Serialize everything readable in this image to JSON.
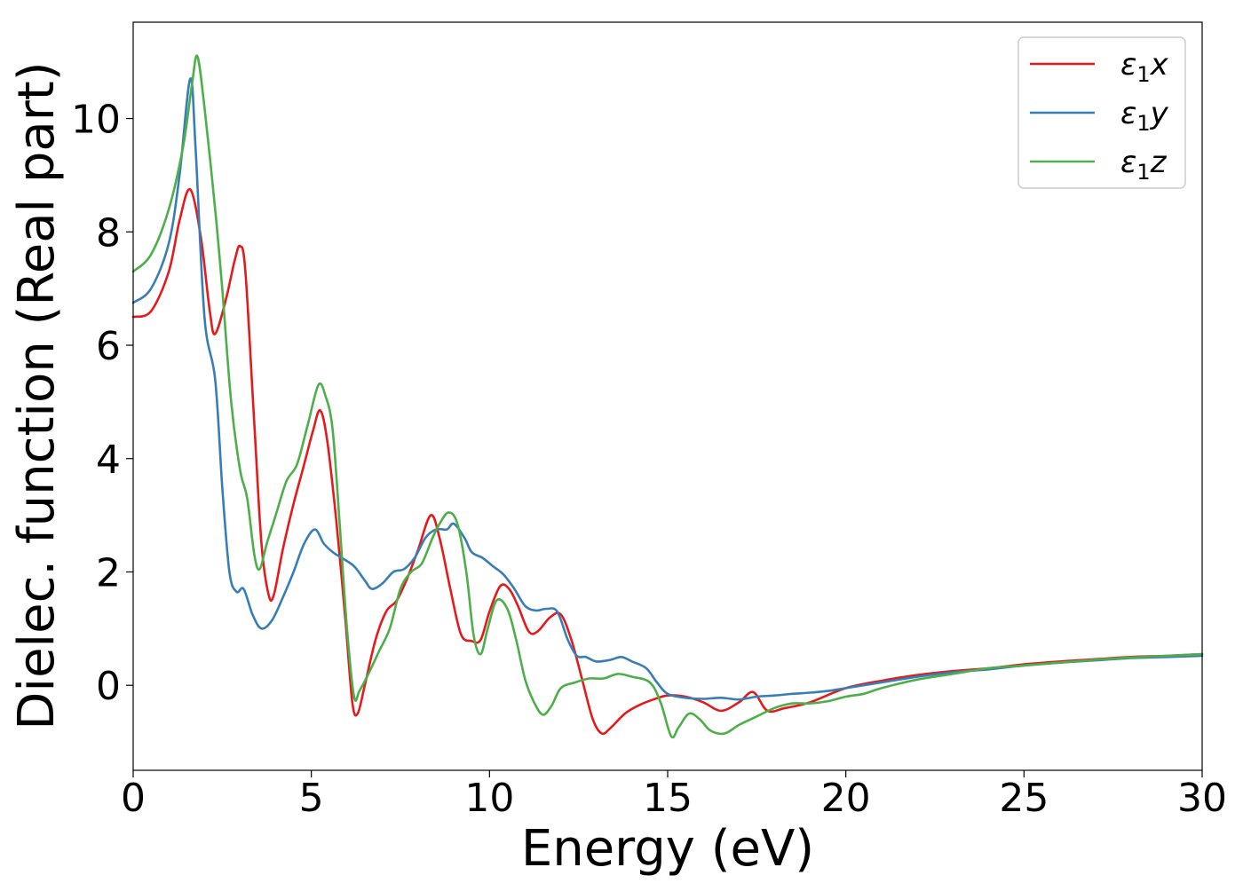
{
  "chart_data": {
    "type": "line",
    "xlabel": "Energy (eV)",
    "ylabel": "Dielec. function (Real part)",
    "xlim": [
      0,
      30
    ],
    "ylim": [
      -1.5,
      11.7
    ],
    "xticks": [
      0,
      5,
      10,
      15,
      20,
      25,
      30
    ],
    "yticks": [
      0,
      2,
      4,
      6,
      8,
      10
    ],
    "xtick_labels": [
      "0",
      "5",
      "10",
      "15",
      "20",
      "25",
      "30"
    ],
    "ytick_labels": [
      "0",
      "2",
      "4",
      "6",
      "8",
      "10"
    ],
    "grid": false,
    "legend_position": "top-right",
    "series": [
      {
        "name": "ε1x",
        "legend_symbol": "ε",
        "legend_sub": "1",
        "legend_var": "x",
        "color": "#e41a1c",
        "points": [
          [
            0,
            6.5
          ],
          [
            0.5,
            6.6
          ],
          [
            1.0,
            7.3
          ],
          [
            1.3,
            8.2
          ],
          [
            1.6,
            8.75
          ],
          [
            1.9,
            7.9
          ],
          [
            2.15,
            6.6
          ],
          [
            2.3,
            6.2
          ],
          [
            2.6,
            6.8
          ],
          [
            2.85,
            7.5
          ],
          [
            3.0,
            7.75
          ],
          [
            3.15,
            7.3
          ],
          [
            3.4,
            4.6
          ],
          [
            3.6,
            2.5
          ],
          [
            3.8,
            1.6
          ],
          [
            3.95,
            1.6
          ],
          [
            4.2,
            2.4
          ],
          [
            4.5,
            3.2
          ],
          [
            4.8,
            3.9
          ],
          [
            5.05,
            4.5
          ],
          [
            5.25,
            4.85
          ],
          [
            5.45,
            4.3
          ],
          [
            5.7,
            2.9
          ],
          [
            5.95,
            1.2
          ],
          [
            6.15,
            -0.3
          ],
          [
            6.3,
            -0.5
          ],
          [
            6.5,
            0.0
          ],
          [
            6.8,
            0.8
          ],
          [
            7.1,
            1.3
          ],
          [
            7.4,
            1.5
          ],
          [
            7.7,
            1.9
          ],
          [
            8.0,
            2.4
          ],
          [
            8.35,
            3.0
          ],
          [
            8.6,
            2.6
          ],
          [
            8.9,
            1.7
          ],
          [
            9.2,
            0.9
          ],
          [
            9.5,
            0.78
          ],
          [
            9.75,
            0.8
          ],
          [
            10.0,
            1.3
          ],
          [
            10.3,
            1.75
          ],
          [
            10.55,
            1.7
          ],
          [
            10.8,
            1.4
          ],
          [
            11.1,
            0.95
          ],
          [
            11.35,
            0.95
          ],
          [
            11.7,
            1.2
          ],
          [
            12.0,
            1.25
          ],
          [
            12.3,
            0.8
          ],
          [
            12.6,
            0.1
          ],
          [
            12.9,
            -0.6
          ],
          [
            13.15,
            -0.85
          ],
          [
            13.4,
            -0.75
          ],
          [
            13.8,
            -0.5
          ],
          [
            14.2,
            -0.35
          ],
          [
            14.6,
            -0.25
          ],
          [
            15.0,
            -0.18
          ],
          [
            15.5,
            -0.2
          ],
          [
            16.0,
            -0.3
          ],
          [
            16.5,
            -0.45
          ],
          [
            17.0,
            -0.3
          ],
          [
            17.4,
            -0.12
          ],
          [
            17.8,
            -0.45
          ],
          [
            18.3,
            -0.4
          ],
          [
            19.0,
            -0.3
          ],
          [
            20.0,
            -0.05
          ],
          [
            21.0,
            0.08
          ],
          [
            22.0,
            0.18
          ],
          [
            23.0,
            0.25
          ],
          [
            24.0,
            0.3
          ],
          [
            25.0,
            0.37
          ],
          [
            26.0,
            0.42
          ],
          [
            27.0,
            0.46
          ],
          [
            28.0,
            0.5
          ],
          [
            29.0,
            0.52
          ],
          [
            30.0,
            0.55
          ]
        ]
      },
      {
        "name": "ε1y",
        "legend_symbol": "ε",
        "legend_sub": "1",
        "legend_var": "y",
        "color": "#377eb8",
        "points": [
          [
            0,
            6.75
          ],
          [
            0.5,
            7.0
          ],
          [
            1.0,
            7.8
          ],
          [
            1.3,
            9.0
          ],
          [
            1.6,
            10.7
          ],
          [
            1.75,
            9.5
          ],
          [
            2.0,
            6.5
          ],
          [
            2.3,
            5.4
          ],
          [
            2.5,
            3.5
          ],
          [
            2.7,
            2.0
          ],
          [
            2.9,
            1.65
          ],
          [
            3.1,
            1.7
          ],
          [
            3.35,
            1.25
          ],
          [
            3.6,
            1.0
          ],
          [
            3.9,
            1.15
          ],
          [
            4.2,
            1.55
          ],
          [
            4.5,
            2.0
          ],
          [
            4.8,
            2.5
          ],
          [
            5.1,
            2.75
          ],
          [
            5.35,
            2.5
          ],
          [
            5.6,
            2.35
          ],
          [
            5.85,
            2.25
          ],
          [
            6.2,
            2.1
          ],
          [
            6.5,
            1.85
          ],
          [
            6.7,
            1.7
          ],
          [
            7.0,
            1.8
          ],
          [
            7.3,
            2.0
          ],
          [
            7.6,
            2.05
          ],
          [
            7.9,
            2.25
          ],
          [
            8.2,
            2.6
          ],
          [
            8.5,
            2.75
          ],
          [
            8.8,
            2.75
          ],
          [
            9.0,
            2.85
          ],
          [
            9.3,
            2.6
          ],
          [
            9.5,
            2.35
          ],
          [
            9.8,
            2.25
          ],
          [
            10.1,
            2.1
          ],
          [
            10.4,
            1.95
          ],
          [
            10.7,
            1.7
          ],
          [
            11.0,
            1.4
          ],
          [
            11.3,
            1.32
          ],
          [
            11.6,
            1.35
          ],
          [
            11.9,
            1.3
          ],
          [
            12.2,
            0.8
          ],
          [
            12.45,
            0.52
          ],
          [
            12.7,
            0.5
          ],
          [
            13.0,
            0.42
          ],
          [
            13.4,
            0.45
          ],
          [
            13.7,
            0.5
          ],
          [
            14.0,
            0.42
          ],
          [
            14.4,
            0.3
          ],
          [
            14.7,
            0.05
          ],
          [
            15.0,
            -0.15
          ],
          [
            15.5,
            -0.22
          ],
          [
            16.0,
            -0.24
          ],
          [
            16.5,
            -0.22
          ],
          [
            17.0,
            -0.25
          ],
          [
            17.5,
            -0.2
          ],
          [
            18.0,
            -0.18
          ],
          [
            18.5,
            -0.15
          ],
          [
            19.0,
            -0.13
          ],
          [
            19.5,
            -0.1
          ],
          [
            20.0,
            -0.05
          ],
          [
            21.0,
            0.05
          ],
          [
            22.0,
            0.15
          ],
          [
            23.0,
            0.23
          ],
          [
            24.0,
            0.28
          ],
          [
            25.0,
            0.35
          ],
          [
            26.0,
            0.4
          ],
          [
            27.0,
            0.44
          ],
          [
            28.0,
            0.48
          ],
          [
            29.0,
            0.5
          ],
          [
            30.0,
            0.52
          ]
        ]
      },
      {
        "name": "ε1z",
        "legend_symbol": "ε",
        "legend_sub": "1",
        "legend_var": "z",
        "color": "#4daf4a",
        "points": [
          [
            0,
            7.3
          ],
          [
            0.5,
            7.6
          ],
          [
            1.0,
            8.4
          ],
          [
            1.4,
            9.5
          ],
          [
            1.65,
            10.6
          ],
          [
            1.8,
            11.1
          ],
          [
            2.0,
            10.2
          ],
          [
            2.3,
            8.4
          ],
          [
            2.5,
            7.0
          ],
          [
            2.75,
            5.0
          ],
          [
            3.0,
            3.8
          ],
          [
            3.2,
            3.3
          ],
          [
            3.4,
            2.3
          ],
          [
            3.55,
            2.05
          ],
          [
            3.75,
            2.5
          ],
          [
            4.0,
            3.0
          ],
          [
            4.3,
            3.6
          ],
          [
            4.6,
            3.9
          ],
          [
            4.9,
            4.6
          ],
          [
            5.2,
            5.3
          ],
          [
            5.4,
            5.1
          ],
          [
            5.6,
            4.5
          ],
          [
            5.8,
            2.8
          ],
          [
            6.0,
            1.0
          ],
          [
            6.2,
            -0.2
          ],
          [
            6.35,
            -0.1
          ],
          [
            6.6,
            0.2
          ],
          [
            6.9,
            0.6
          ],
          [
            7.2,
            1.0
          ],
          [
            7.5,
            1.7
          ],
          [
            7.8,
            2.0
          ],
          [
            8.1,
            2.15
          ],
          [
            8.4,
            2.6
          ],
          [
            8.6,
            2.85
          ],
          [
            8.85,
            3.05
          ],
          [
            9.1,
            2.85
          ],
          [
            9.35,
            2.0
          ],
          [
            9.55,
            0.9
          ],
          [
            9.75,
            0.55
          ],
          [
            9.95,
            1.0
          ],
          [
            10.2,
            1.5
          ],
          [
            10.5,
            1.35
          ],
          [
            10.75,
            0.8
          ],
          [
            11.0,
            0.1
          ],
          [
            11.25,
            -0.3
          ],
          [
            11.5,
            -0.52
          ],
          [
            11.75,
            -0.35
          ],
          [
            12.0,
            -0.05
          ],
          [
            12.4,
            0.05
          ],
          [
            12.8,
            0.12
          ],
          [
            13.2,
            0.12
          ],
          [
            13.6,
            0.2
          ],
          [
            14.0,
            0.15
          ],
          [
            14.5,
            0.05
          ],
          [
            14.8,
            -0.3
          ],
          [
            15.1,
            -0.9
          ],
          [
            15.3,
            -0.75
          ],
          [
            15.6,
            -0.5
          ],
          [
            15.9,
            -0.6
          ],
          [
            16.2,
            -0.8
          ],
          [
            16.6,
            -0.85
          ],
          [
            17.0,
            -0.7
          ],
          [
            17.5,
            -0.55
          ],
          [
            18.0,
            -0.4
          ],
          [
            18.5,
            -0.32
          ],
          [
            19.0,
            -0.32
          ],
          [
            19.5,
            -0.28
          ],
          [
            20.0,
            -0.2
          ],
          [
            20.5,
            -0.15
          ],
          [
            21.0,
            -0.05
          ],
          [
            22.0,
            0.1
          ],
          [
            23.0,
            0.2
          ],
          [
            24.0,
            0.3
          ],
          [
            25.0,
            0.35
          ],
          [
            26.0,
            0.4
          ],
          [
            27.0,
            0.45
          ],
          [
            28.0,
            0.49
          ],
          [
            29.0,
            0.52
          ],
          [
            30.0,
            0.55
          ]
        ]
      }
    ]
  }
}
